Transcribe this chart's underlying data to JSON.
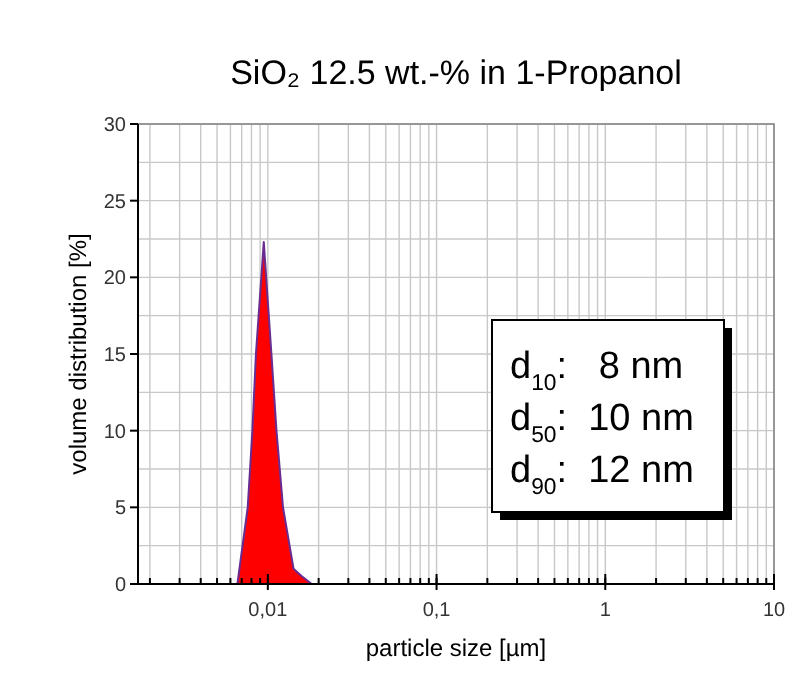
{
  "chart_data": {
    "type": "area",
    "title": "SiO₂ 12.5 wt.-% in 1-Propanol",
    "xlabel": "particle size [µm]",
    "ylabel": "volume distribution [%]",
    "log": "x",
    "grid": true,
    "xlim": [
      0.0017,
      10
    ],
    "xticks": [
      {
        "value": 0.01,
        "label": "0,01"
      },
      {
        "value": 0.1,
        "label": "0,1"
      },
      1,
      10
    ],
    "ylim": [
      0,
      30
    ],
    "yticks": [
      0,
      5,
      10,
      15,
      20,
      25,
      30
    ],
    "series": [
      {
        "color": "#ff0000",
        "x": [
          0.0038,
          0.0066,
          0.0076,
          0.0081,
          0.0085,
          0.00946,
          0.0105,
          0.01125,
          0.0123,
          0.0142,
          0.0159,
          0.0182,
          10
        ],
        "values": [
          0,
          0,
          5,
          10,
          15,
          22.3,
          15,
          10,
          5,
          1,
          0.5,
          0,
          0
        ]
      }
    ],
    "annotations": [
      "d$_{10}$:   8 nm",
      "d$_{50}$:  10 nm",
      "d$_{90}$:  12 nm"
    ]
  }
}
